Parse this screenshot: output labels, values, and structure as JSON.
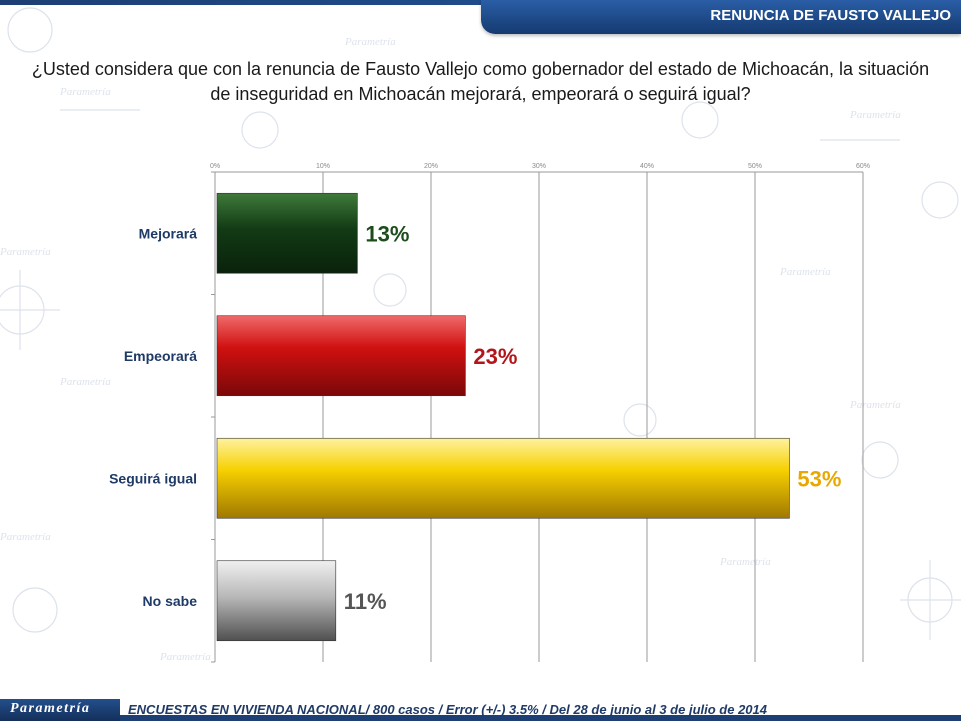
{
  "header": {
    "title": "RENUNCIA DE FAUSTO VALLEJO"
  },
  "question": "¿Usted considera que con la renuncia de Fausto Vallejo como gobernador del estado de Michoacán, la situación de inseguridad en Michoacán mejorará, empeorará o seguirá igual?",
  "watermark": "Parametría",
  "chart_data": {
    "type": "bar",
    "orientation": "horizontal",
    "categories": [
      "Mejorará",
      "Empeorará",
      "Seguirá igual",
      "No sabe"
    ],
    "values": [
      13,
      23,
      53,
      11
    ],
    "value_labels": [
      "13%",
      "23%",
      "53%",
      "11%"
    ],
    "xlim": [
      0,
      60
    ],
    "x_ticks": [
      "0%",
      "10%",
      "20%",
      "30%",
      "40%",
      "50%",
      "60%"
    ],
    "grid": true,
    "axis_position": "top",
    "colors": {
      "Mejorará": "#1d4d1d",
      "Empeorará": "#c41212",
      "Seguirá igual": "#f2c500",
      "No sabe": "#9a9a9a"
    },
    "label_colors": {
      "Mejorará": "#1d4d1d",
      "Empeorará": "#b3151a",
      "Seguirá igual": "#e8a800",
      "No sabe": "#555555"
    }
  },
  "footer": {
    "logo": "Parametría",
    "note": "ENCUESTAS EN VIVIENDA NACIONAL/ 800 casos / Error (+/-) 3.5% / Del 28 de junio al 3 de julio de 2014"
  }
}
